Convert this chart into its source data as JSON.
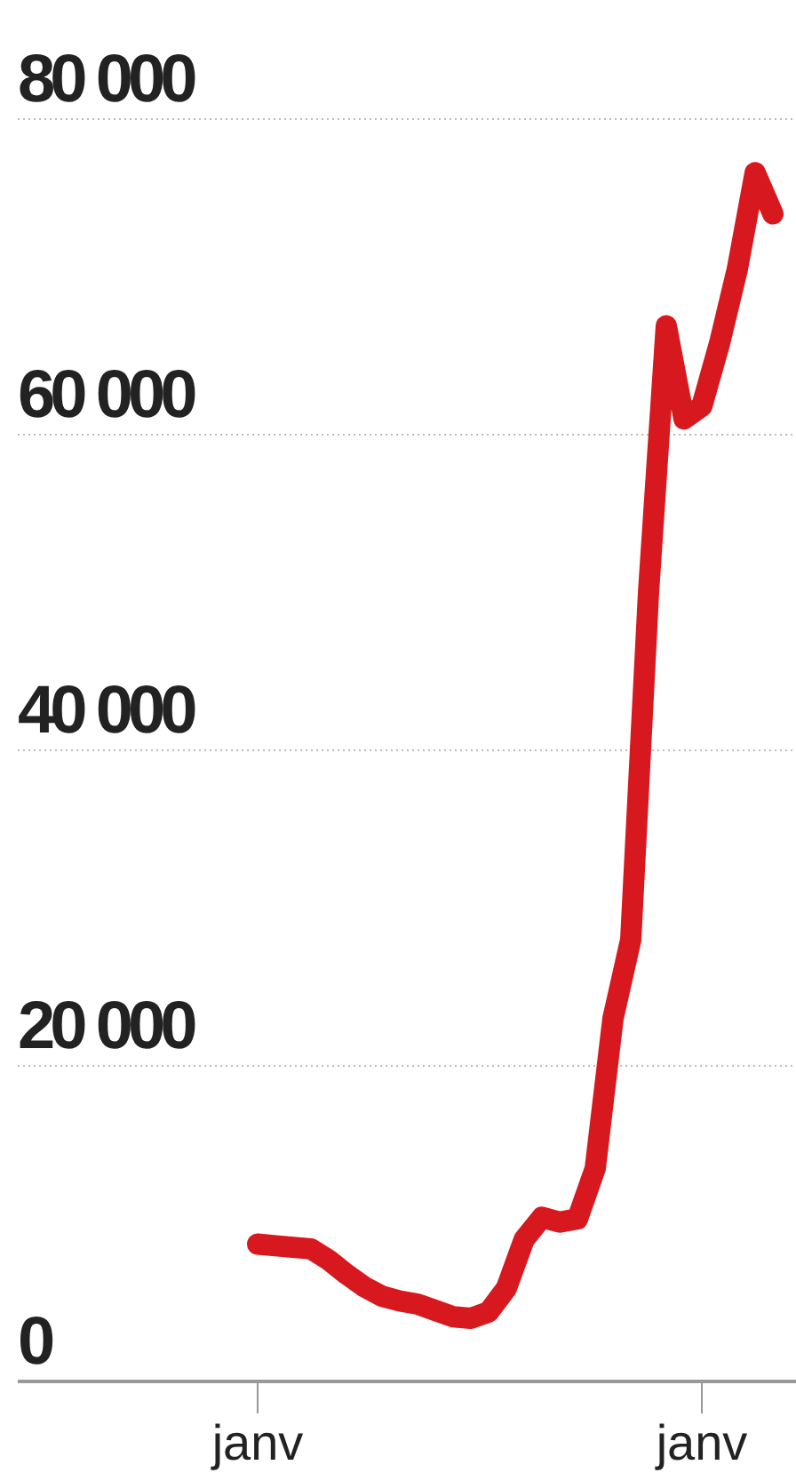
{
  "chart_data": {
    "type": "line",
    "categories": [
      "janv",
      null,
      null,
      null,
      null,
      null,
      null,
      null,
      null,
      null,
      null,
      null,
      null,
      null,
      null,
      null,
      null,
      null,
      null,
      null,
      null,
      null,
      null,
      null,
      null,
      "janv",
      null,
      null,
      null,
      null
    ],
    "series": [
      {
        "color": "#d7191f",
        "values": [
          8700,
          8600,
          8500,
          8400,
          7700,
          6800,
          6000,
          5400,
          5100,
          4900,
          4500,
          4100,
          4000,
          4400,
          5900,
          9000,
          10400,
          10100,
          10300,
          13500,
          23000,
          28000,
          50000,
          66900,
          61000,
          61800,
          65800,
          70500,
          76600,
          74000
        ]
      }
    ],
    "ylim": [
      0,
      80000
    ],
    "yticks": [
      {
        "value": 0,
        "label": "0"
      },
      {
        "value": 20000,
        "label": "20 000"
      },
      {
        "value": 40000,
        "label": "40 000"
      },
      {
        "value": 60000,
        "label": "60 000"
      },
      {
        "value": 80000,
        "label": "80 000"
      }
    ],
    "grid": "y",
    "legend": false,
    "marker": "none",
    "line_style": "solid"
  }
}
